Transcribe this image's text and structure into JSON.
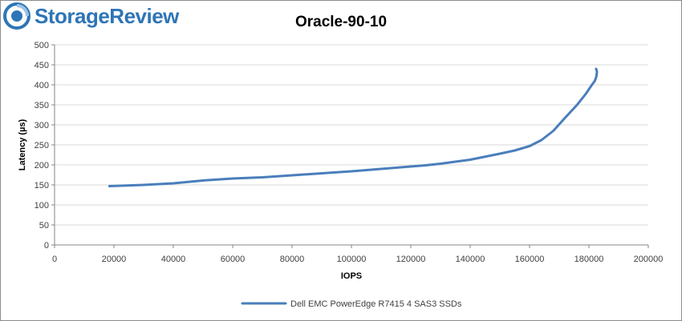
{
  "brand": {
    "name": "StorageReview",
    "logo_icon": "storagereview-logo-icon",
    "color": "#2e75b6"
  },
  "chart_data": {
    "type": "line",
    "title": "Oracle-90-10",
    "xlabel": "IOPS",
    "ylabel": "Latency (µs)",
    "xlim": [
      0,
      200000
    ],
    "ylim": [
      0,
      500
    ],
    "x_ticks": [
      0,
      20000,
      40000,
      60000,
      80000,
      100000,
      120000,
      140000,
      160000,
      180000,
      200000
    ],
    "y_ticks": [
      0,
      50,
      100,
      150,
      200,
      250,
      300,
      350,
      400,
      450,
      500
    ],
    "grid": true,
    "legend_position": "bottom",
    "series": [
      {
        "name": "Dell EMC PowerEdge R7415 4 SAS3 SSDs",
        "color": "#4a7ebb",
        "points": [
          [
            18500,
            147
          ],
          [
            30000,
            150
          ],
          [
            40000,
            154
          ],
          [
            50000,
            161
          ],
          [
            60000,
            166
          ],
          [
            70000,
            169
          ],
          [
            80000,
            174
          ],
          [
            90000,
            179
          ],
          [
            100000,
            184
          ],
          [
            110000,
            190
          ],
          [
            120000,
            196
          ],
          [
            125000,
            199
          ],
          [
            130000,
            203
          ],
          [
            140000,
            213
          ],
          [
            150000,
            228
          ],
          [
            155000,
            236
          ],
          [
            160000,
            247
          ],
          [
            164000,
            262
          ],
          [
            168000,
            285
          ],
          [
            172000,
            318
          ],
          [
            176000,
            350
          ],
          [
            179000,
            378
          ],
          [
            181000,
            400
          ],
          [
            182000,
            410
          ],
          [
            182500,
            421
          ],
          [
            182700,
            432
          ],
          [
            182600,
            437
          ],
          [
            182400,
            440
          ]
        ]
      }
    ]
  }
}
